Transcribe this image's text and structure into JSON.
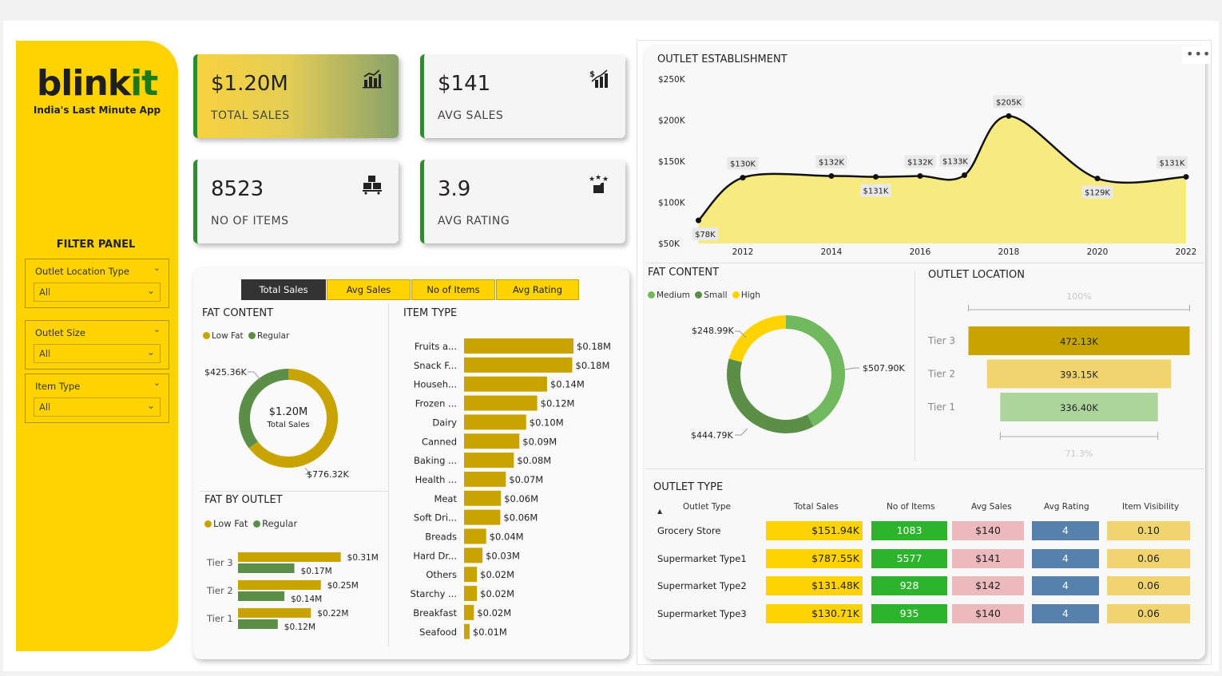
{
  "brand": {
    "blink": "blink",
    "it": "it",
    "tagline": "India's Last Minute App"
  },
  "filters": {
    "title": "FILTER PANEL",
    "items": [
      {
        "label": "Outlet Location Type",
        "value": "All"
      },
      {
        "label": "Outlet Size",
        "value": "All"
      },
      {
        "label": "Item Type",
        "value": "All"
      }
    ]
  },
  "kpis": [
    {
      "value": "$1.20M",
      "label": "TOTAL SALES",
      "icon": "bar-chart-growth-icon"
    },
    {
      "value": "$141",
      "label": "AVG SALES",
      "icon": "dollar-chart-icon"
    },
    {
      "value": "8523",
      "label": "NO OF ITEMS",
      "icon": "stacked-boxes-icon"
    },
    {
      "value": "3.9",
      "label": "AVG RATING",
      "icon": "rating-stars-icon"
    }
  ],
  "tabs": [
    "Total Sales",
    "Avg Sales",
    "No of Items",
    "Avg Rating"
  ],
  "active_tab": "Total Sales",
  "colors": {
    "gold": "#c9a400",
    "yellow": "#ffd300",
    "green": "#5b8f48",
    "light_green": "#70b95e",
    "pink": "#ecb9bd",
    "blue": "#5581ac",
    "lime": "#2cb52c",
    "sand": "#f1d46d"
  },
  "more_options_icon": "ellipsis-icon",
  "fat_content_left": {
    "title": "FAT CONTENT",
    "center_value": "$1.20M",
    "center_label": "Total Sales"
  },
  "fat_by_outlet": {
    "title": "FAT BY OUTLET"
  },
  "item_type": {
    "title": "ITEM TYPE"
  },
  "outlet_establishment": {
    "title": "OUTLET ESTABLISHMENT"
  },
  "fat_content_right": {
    "title": "FAT CONTENT"
  },
  "outlet_location": {
    "title": "OUTLET LOCATION",
    "top_pct": "100%",
    "bottom_pct": "71.3%"
  },
  "outlet_type": {
    "title": "OUTLET TYPE",
    "sort_icon": "sort-ascending-icon",
    "headers": [
      "Outlet Type",
      "Total Sales",
      "No of Items",
      "Avg Sales",
      "Avg Rating",
      "Item Visibility"
    ],
    "rows": [
      {
        "type": "Grocery Store",
        "total_sales": "$151.94K",
        "items": "1083",
        "avg_sales": "$140",
        "rating": "4",
        "visibility": "0.10"
      },
      {
        "type": "Supermarket Type1",
        "total_sales": "$787.55K",
        "items": "5577",
        "avg_sales": "$141",
        "rating": "4",
        "visibility": "0.06"
      },
      {
        "type": "Supermarket Type2",
        "total_sales": "$131.48K",
        "items": "928",
        "avg_sales": "$142",
        "rating": "4",
        "visibility": "0.06"
      },
      {
        "type": "Supermarket Type3",
        "total_sales": "$130.71K",
        "items": "935",
        "avg_sales": "$140",
        "rating": "4",
        "visibility": "0.06"
      }
    ]
  },
  "chart_data": [
    {
      "id": "fat_content_sales",
      "type": "pie",
      "title": "FAT CONTENT",
      "legend": "top",
      "categories": [
        "Low Fat",
        "Regular"
      ],
      "values": [
        776.32,
        425.36
      ],
      "labels": [
        "$776.32K",
        "$425.36K"
      ],
      "colors": [
        "#c9a400",
        "#5b8f48"
      ]
    },
    {
      "id": "fat_by_outlet",
      "type": "bar",
      "title": "FAT BY OUTLET",
      "legend": "top",
      "categories": [
        "Tier 3",
        "Tier 2",
        "Tier 1"
      ],
      "series": [
        {
          "name": "Low Fat",
          "values": [
            0.31,
            0.25,
            0.22
          ],
          "labels": [
            "$0.31M",
            "$0.25M",
            "$0.22M"
          ],
          "color": "#c9a400"
        },
        {
          "name": "Regular",
          "values": [
            0.17,
            0.14,
            0.12
          ],
          "labels": [
            "$0.17M",
            "$0.14M",
            "$0.12M"
          ],
          "color": "#5b8f48"
        }
      ]
    },
    {
      "id": "item_type",
      "type": "bar",
      "title": "ITEM TYPE",
      "categories": [
        "Fruits a...",
        "Snack F...",
        "Househ...",
        "Frozen ...",
        "Dairy",
        "Canned",
        "Baking ...",
        "Health ...",
        "Meat",
        "Soft Dri...",
        "Breads",
        "Hard Dr...",
        "Others",
        "Starchy ...",
        "Breakfast",
        "Seafood"
      ],
      "values": [
        0.178,
        0.176,
        0.135,
        0.119,
        0.101,
        0.09,
        0.081,
        0.068,
        0.06,
        0.059,
        0.036,
        0.03,
        0.021,
        0.021,
        0.016,
        0.009
      ],
      "labels": [
        "$0.18M",
        "$0.18M",
        "$0.14M",
        "$0.12M",
        "$0.10M",
        "$0.09M",
        "$0.08M",
        "$0.07M",
        "$0.06M",
        "$0.06M",
        "$0.04M",
        "$0.03M",
        "$0.02M",
        "$0.02M",
        "$0.02M",
        "$0.01M"
      ],
      "color": "#c9a400"
    },
    {
      "id": "outlet_establishment",
      "type": "area",
      "title": "OUTLET ESTABLISHMENT",
      "x": [
        2011,
        2012,
        2014,
        2015,
        2016,
        2017,
        2018,
        2020,
        2022
      ],
      "values": [
        78,
        130,
        132,
        131,
        132,
        133,
        205,
        129,
        131
      ],
      "labels": [
        "$78K",
        "$130K",
        "$132K",
        "$131K",
        "$132K",
        "$133K",
        "$205K",
        "$129K",
        "$131K"
      ],
      "xticks": [
        "2012",
        "2014",
        "2016",
        "2018",
        "2020",
        "2022"
      ],
      "yticks": [
        "$50K",
        "$100K",
        "$150K",
        "$200K",
        "$250K"
      ],
      "ylim": [
        50,
        250
      ],
      "fill": "#f7ea80"
    },
    {
      "id": "fat_content_size",
      "type": "pie",
      "title": "FAT CONTENT",
      "legend": "top",
      "categories": [
        "Medium",
        "Small",
        "High"
      ],
      "values": [
        507.9,
        444.79,
        248.99
      ],
      "labels": [
        "$507.90K",
        "$444.79K",
        "$248.99K"
      ],
      "colors": [
        "#70b95e",
        "#5b8f48",
        "#ffd300"
      ]
    },
    {
      "id": "outlet_location",
      "type": "bar",
      "title": "OUTLET LOCATION",
      "categories": [
        "Tier 3",
        "Tier 2",
        "Tier 1"
      ],
      "values": [
        472.13,
        393.15,
        336.4
      ],
      "labels": [
        "472.13K",
        "393.15K",
        "336.40K"
      ],
      "colors": [
        "#c9a400",
        "#f1d46d",
        "#acd59c"
      ]
    }
  ]
}
